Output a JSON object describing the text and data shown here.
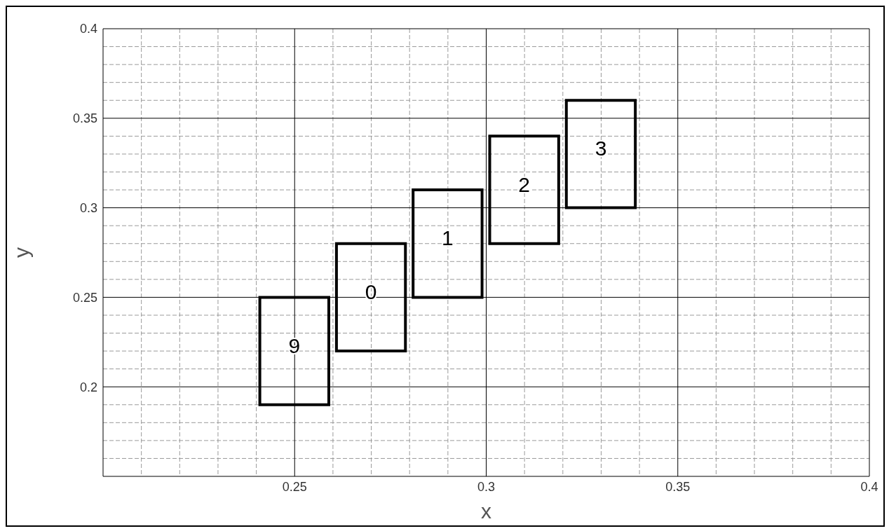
{
  "chart_data": {
    "type": "bar",
    "xlabel": "x",
    "ylabel": "y",
    "x": [
      0.25,
      0.27,
      0.29,
      0.31,
      0.33
    ],
    "base": [
      0.19,
      0.22,
      0.25,
      0.28,
      0.3
    ],
    "values": [
      0.06,
      0.06,
      0.06,
      0.06,
      0.06
    ],
    "color": "#000000",
    "xlim": [
      0.2,
      0.4
    ],
    "xticks": [
      {
        "value": 0.21,
        "label": null
      },
      {
        "value": 0.22,
        "label": null
      },
      {
        "value": 0.23,
        "label": null
      },
      {
        "value": 0.24,
        "label": null
      },
      0.25,
      {
        "value": 0.26,
        "label": null
      },
      {
        "value": 0.27,
        "label": null
      },
      {
        "value": 0.28,
        "label": null
      },
      {
        "value": 0.29,
        "label": null
      },
      0.3,
      {
        "value": 0.31,
        "label": null
      },
      {
        "value": 0.32,
        "label": null
      },
      {
        "value": 0.33,
        "label": null
      },
      {
        "value": 0.34,
        "label": null
      },
      0.35,
      {
        "value": 0.36,
        "label": null
      },
      {
        "value": 0.37,
        "label": null
      },
      {
        "value": 0.38,
        "label": null
      },
      {
        "value": 0.39,
        "label": null
      },
      0.4
    ],
    "ylim": [
      0.15,
      0.4
    ],
    "yticks": [
      {
        "value": 0.16,
        "label": null
      },
      {
        "value": 0.17,
        "label": null
      },
      {
        "value": 0.18,
        "label": null
      },
      {
        "value": 0.19,
        "label": null
      },
      0.2,
      {
        "value": 0.21,
        "label": null
      },
      {
        "value": 0.22,
        "label": null
      },
      {
        "value": 0.23,
        "label": null
      },
      {
        "value": 0.24,
        "label": null
      },
      0.25,
      {
        "value": 0.26,
        "label": null
      },
      {
        "value": 0.27,
        "label": null
      },
      {
        "value": 0.28,
        "label": null
      },
      {
        "value": 0.29,
        "label": null
      },
      0.3,
      {
        "value": 0.31,
        "label": null
      },
      {
        "value": 0.32,
        "label": null
      },
      {
        "value": 0.33,
        "label": null
      },
      {
        "value": 0.34,
        "label": null
      },
      0.35,
      {
        "value": 0.36,
        "label": null
      },
      {
        "value": 0.37,
        "label": null
      },
      {
        "value": 0.38,
        "label": null
      },
      {
        "value": 0.39,
        "label": null
      },
      0.4
    ],
    "grid": true,
    "annotations": [
      "9",
      "0",
      "1",
      "2",
      "3"
    ]
  }
}
